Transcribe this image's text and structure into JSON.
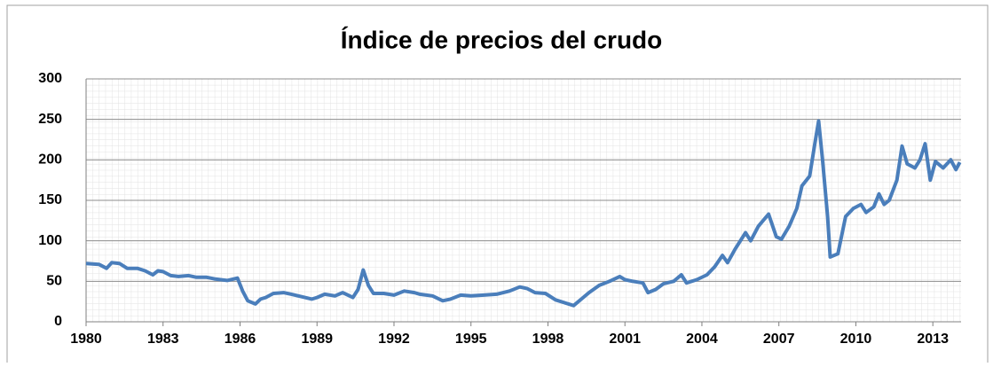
{
  "chart_data": {
    "type": "line",
    "title": "Índice de precios del crudo",
    "x": [
      1980,
      1980.5,
      1980.8,
      1981,
      1981.3,
      1981.6,
      1982,
      1982.3,
      1982.6,
      1982.8,
      1983,
      1983.3,
      1983.6,
      1984,
      1984.3,
      1984.7,
      1985,
      1985.5,
      1985.9,
      1986.1,
      1986.3,
      1986.6,
      1986.8,
      1987,
      1987.3,
      1987.7,
      1988,
      1988.4,
      1988.8,
      1989,
      1989.3,
      1989.7,
      1990,
      1990.4,
      1990.6,
      1990.8,
      1991,
      1991.2,
      1991.6,
      1992,
      1992.4,
      1992.8,
      1993,
      1993.5,
      1993.9,
      1994.2,
      1994.6,
      1995,
      1995.5,
      1996,
      1996.5,
      1996.9,
      1997.2,
      1997.5,
      1997.9,
      1998.3,
      1998.7,
      1999,
      1999.3,
      1999.6,
      2000,
      2000.4,
      2000.8,
      2001,
      2001.3,
      2001.7,
      2001.9,
      2002.2,
      2002.5,
      2002.9,
      2003.2,
      2003.4,
      2003.8,
      2004.2,
      2004.5,
      2004.8,
      2005,
      2005.3,
      2005.7,
      2005.9,
      2006.2,
      2006.6,
      2006.9,
      2007.1,
      2007.4,
      2007.7,
      2007.9,
      2008.2,
      2008.4,
      2008.55,
      2008.7,
      2008.9,
      2009,
      2009.3,
      2009.6,
      2009.9,
      2010.2,
      2010.4,
      2010.7,
      2010.9,
      2011.1,
      2011.3,
      2011.6,
      2011.8,
      2012,
      2012.3,
      2012.5,
      2012.7,
      2012.9,
      2013.1,
      2013.4,
      2013.7,
      2013.9,
      2014.05
    ],
    "series": [
      {
        "color": "#4a7ebb",
        "values": [
          72,
          71,
          66,
          73,
          72,
          66,
          66,
          63,
          58,
          63,
          62,
          57,
          56,
          57,
          55,
          55,
          53,
          51,
          54,
          38,
          26,
          22,
          28,
          30,
          35,
          36,
          34,
          31,
          28,
          30,
          34,
          32,
          36,
          30,
          40,
          64,
          45,
          35,
          35,
          33,
          38,
          36,
          34,
          32,
          26,
          28,
          33,
          32,
          33,
          34,
          38,
          43,
          41,
          36,
          35,
          27,
          23,
          20,
          28,
          36,
          45,
          50,
          56,
          52,
          50,
          48,
          36,
          40,
          47,
          50,
          58,
          48,
          52,
          58,
          68,
          82,
          73,
          90,
          110,
          100,
          118,
          133,
          105,
          102,
          118,
          140,
          168,
          180,
          220,
          248,
          200,
          130,
          80,
          84,
          130,
          140,
          145,
          135,
          142,
          158,
          145,
          150,
          175,
          217,
          195,
          190,
          200,
          220,
          175,
          198,
          190,
          200,
          188,
          197
        ]
      }
    ],
    "xlim": [
      1980,
      2014.1
    ],
    "xticks": [
      1980,
      1983,
      1986,
      1989,
      1992,
      1995,
      1998,
      2001,
      2004,
      2007,
      2010,
      2013
    ],
    "ylim": [
      0,
      300
    ],
    "yticks": [
      0,
      50,
      100,
      150,
      200,
      250,
      300
    ],
    "grid": true
  }
}
